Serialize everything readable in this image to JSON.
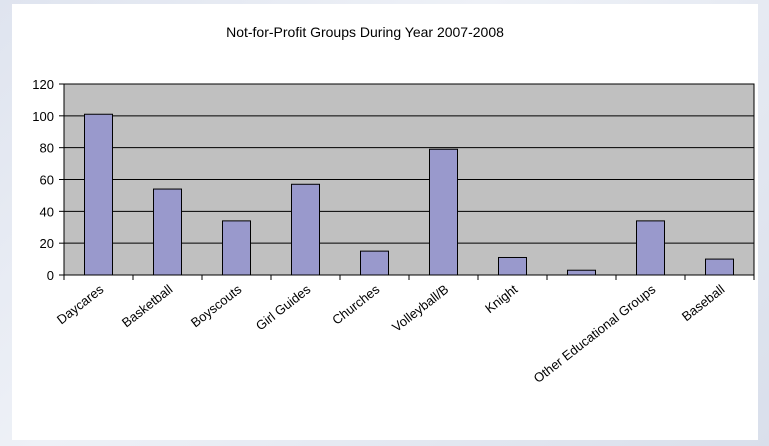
{
  "chart_data": {
    "type": "bar",
    "title": "Not-for-Profit Groups During Year 2007-2008",
    "xlabel": "",
    "ylabel": "",
    "categories": [
      "Daycares",
      "Basketball",
      "Boyscouts",
      "Girl Guides",
      "Churches",
      "Volleyball/B",
      "Knight",
      "",
      "Other Educational Groups",
      "Baseball"
    ],
    "values": [
      101,
      54,
      34,
      57,
      15,
      79,
      11,
      3,
      34,
      10
    ],
    "ylim": [
      0,
      120
    ],
    "yticks": [
      "0",
      "20",
      "40",
      "60",
      "80",
      "100",
      "120"
    ],
    "grid": true,
    "legend": "none",
    "colors": {
      "bar_fill": "#9999cc",
      "bar_stroke": "#000000",
      "plot_background": "#c0c0c0",
      "gridline": "#000000"
    }
  }
}
